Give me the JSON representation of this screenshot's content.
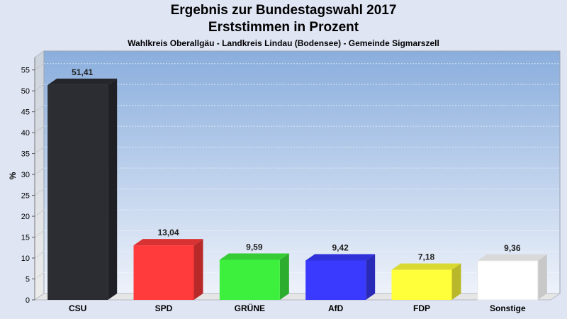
{
  "chart_data": {
    "type": "bar",
    "title": "Ergebnis zur Bundestagswahl 2017",
    "subtitle": "Erststimmen in Prozent",
    "caption": "Wahlkreis Oberallgäu - Landkreis Lindau (Bodensee) - Gemeinde Sigmarszell",
    "ylabel": "%",
    "xlabel": "",
    "ylim": [
      0,
      58
    ],
    "yticks": [
      0,
      5,
      10,
      15,
      20,
      25,
      30,
      35,
      40,
      45,
      50,
      55
    ],
    "grid": true,
    "categories": [
      "CSU",
      "SPD",
      "GRÜNE",
      "AfD",
      "FDP",
      "Sonstige"
    ],
    "values": [
      51.41,
      13.04,
      9.59,
      9.42,
      7.18,
      9.36
    ],
    "value_labels": [
      "51,41",
      "13,04",
      "9,59",
      "9,42",
      "7,18",
      "9,36"
    ],
    "colors": [
      "#2b2d33",
      "#ff3b3b",
      "#3ef03e",
      "#3a3aff",
      "#ffff3a",
      "#ffffff"
    ]
  }
}
